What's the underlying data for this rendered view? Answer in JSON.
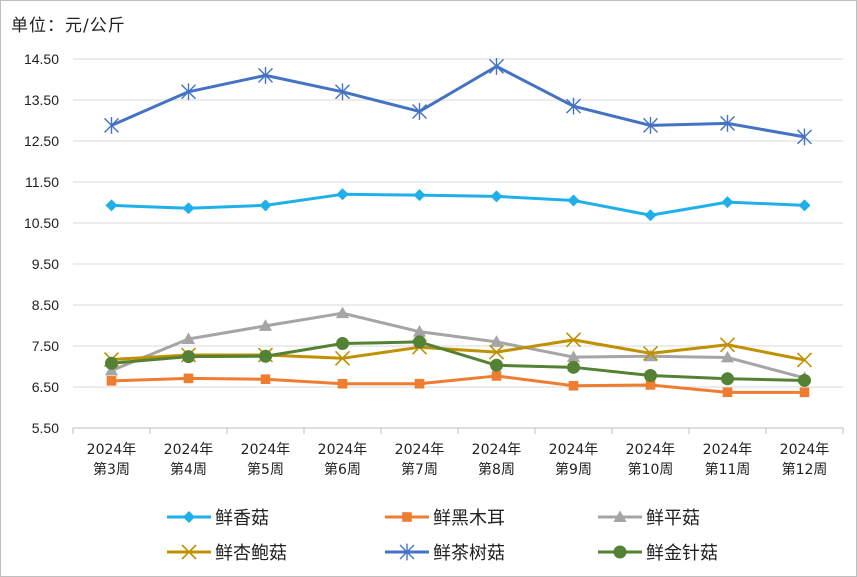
{
  "unit_label": "单位：元/公斤",
  "chart_data": {
    "type": "line",
    "title": "",
    "xlabel": "",
    "ylabel": "",
    "ylim": [
      5.5,
      14.5
    ],
    "y_ticks": [
      "5.50",
      "6.50",
      "7.50",
      "8.50",
      "9.50",
      "10.50",
      "11.50",
      "12.50",
      "13.50",
      "14.50"
    ],
    "grid": "horizontal",
    "legend_position": "bottom",
    "categories": [
      [
        "2024年",
        "第3周"
      ],
      [
        "2024年",
        "第4周"
      ],
      [
        "2024年",
        "第5周"
      ],
      [
        "2024年",
        "第6周"
      ],
      [
        "2024年",
        "第7周"
      ],
      [
        "2024年",
        "第8周"
      ],
      [
        "2024年",
        "第9周"
      ],
      [
        "2024年",
        "第10周"
      ],
      [
        "2024年",
        "第11周"
      ],
      [
        "2024年",
        "第12周"
      ]
    ],
    "series": [
      {
        "name": "鲜香菇",
        "color": "#1fb0ea",
        "marker": "diamond",
        "values": [
          10.93,
          10.86,
          10.93,
          11.2,
          11.18,
          11.15,
          11.05,
          10.69,
          11.01,
          10.93
        ]
      },
      {
        "name": "鲜黑木耳",
        "color": "#ee7d31",
        "marker": "square",
        "values": [
          6.65,
          6.71,
          6.69,
          6.58,
          6.58,
          6.77,
          6.53,
          6.55,
          6.37,
          6.37
        ]
      },
      {
        "name": "鲜平菇",
        "color": "#a5a5a5",
        "marker": "triangle",
        "values": [
          6.9,
          7.67,
          7.99,
          8.3,
          7.85,
          7.6,
          7.23,
          7.25,
          7.22,
          6.72
        ]
      },
      {
        "name": "鲜杏鲍菇",
        "color": "#bf9000",
        "marker": "x",
        "values": [
          7.17,
          7.28,
          7.28,
          7.2,
          7.47,
          7.35,
          7.65,
          7.32,
          7.53,
          7.16
        ]
      },
      {
        "name": "鲜茶树菇",
        "color": "#4472c4",
        "marker": "star",
        "values": [
          12.88,
          13.7,
          14.1,
          13.7,
          13.22,
          14.32,
          13.35,
          12.88,
          12.93,
          12.6
        ]
      },
      {
        "name": "鲜金针菇",
        "color": "#548235",
        "marker": "circle",
        "values": [
          7.08,
          7.24,
          7.25,
          7.56,
          7.6,
          7.03,
          6.98,
          6.78,
          6.7,
          6.66
        ]
      }
    ]
  }
}
